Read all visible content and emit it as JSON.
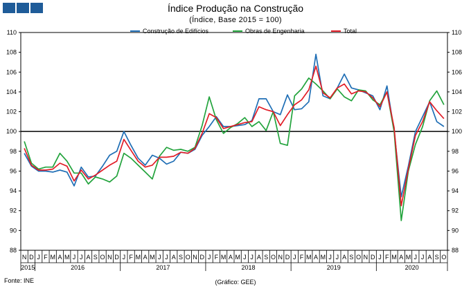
{
  "header": {
    "title": "Índice Produção na Construção",
    "subtitle": "(Índice, Base 2015 = 100)"
  },
  "footer": {
    "source": "Fonte: INE",
    "credit": "(Gráfico: GEE)"
  },
  "chart_data": {
    "type": "line",
    "ylim": [
      88,
      110
    ],
    "yticks": [
      88,
      90,
      92,
      94,
      96,
      98,
      100,
      102,
      104,
      106,
      108,
      110
    ],
    "reference_line": 100,
    "grid": false,
    "legend_position": "top",
    "x_month_labels": [
      "N",
      "D",
      "J",
      "F",
      "M",
      "A",
      "M",
      "J",
      "J",
      "A",
      "S",
      "O",
      "N",
      "D",
      "J",
      "F",
      "M",
      "A",
      "M",
      "J",
      "J",
      "A",
      "S",
      "O",
      "N",
      "D",
      "J",
      "F",
      "M",
      "A",
      "M",
      "J",
      "J",
      "A",
      "S",
      "O",
      "N",
      "D",
      "J",
      "F",
      "M",
      "A",
      "M",
      "J",
      "J",
      "A",
      "S",
      "O",
      "N",
      "D",
      "J",
      "F",
      "M",
      "A",
      "M",
      "J",
      "J",
      "A",
      "S",
      "O"
    ],
    "x_year_labels": [
      {
        "label": "2015",
        "start": 0,
        "end": 1
      },
      {
        "label": "2016",
        "start": 2,
        "end": 13
      },
      {
        "label": "2017",
        "start": 14,
        "end": 25
      },
      {
        "label": "2018",
        "start": 26,
        "end": 37
      },
      {
        "label": "2019",
        "start": 38,
        "end": 49
      },
      {
        "label": "2020",
        "start": 50,
        "end": 59
      }
    ],
    "series": [
      {
        "name": "Construção de Edifícios",
        "color": "#1f6eb5",
        "values": [
          97.8,
          96.5,
          96.0,
          96.0,
          95.9,
          96.1,
          95.9,
          94.5,
          96.4,
          95.4,
          95.5,
          96.5,
          97.6,
          98.0,
          100.0,
          98.6,
          97.3,
          96.6,
          97.6,
          97.3,
          96.7,
          97.0,
          97.9,
          97.8,
          98.2,
          99.6,
          100.5,
          101.5,
          100.5,
          100.5,
          100.6,
          100.7,
          101.1,
          103.3,
          103.3,
          102.0,
          101.7,
          103.7,
          102.2,
          102.3,
          103.0,
          107.8,
          103.6,
          103.3,
          104.4,
          105.8,
          104.4,
          104.2,
          103.9,
          103.6,
          102.2,
          104.6,
          100.1,
          93.4,
          96.5,
          100.0,
          101.5,
          103.0,
          101.0,
          100.5
        ]
      },
      {
        "name": "Obras de Engenharia",
        "color": "#22a33c",
        "values": [
          99.0,
          96.8,
          96.2,
          96.4,
          96.4,
          97.8,
          97.0,
          95.8,
          95.8,
          94.7,
          95.4,
          95.2,
          94.9,
          95.5,
          97.8,
          97.3,
          96.6,
          95.9,
          95.2,
          97.5,
          98.4,
          98.1,
          98.2,
          98.0,
          98.4,
          100.6,
          103.5,
          101.2,
          99.8,
          100.4,
          100.8,
          101.4,
          100.5,
          101.0,
          100.1,
          102.0,
          98.8,
          98.6,
          103.6,
          104.3,
          105.4,
          104.8,
          104.1,
          103.3,
          104.3,
          103.5,
          103.1,
          104.2,
          104.1,
          103.2,
          102.7,
          104.0,
          100.0,
          91.0,
          96.0,
          98.7,
          100.5,
          103.1,
          104.1,
          102.7
        ]
      },
      {
        "name": "Total",
        "color": "#e11d27",
        "values": [
          98.3,
          96.6,
          96.1,
          96.1,
          96.2,
          96.8,
          96.5,
          95.0,
          96.1,
          95.2,
          95.6,
          96.1,
          96.6,
          97.0,
          99.2,
          98.1,
          97.0,
          96.4,
          96.6,
          97.4,
          97.4,
          97.5,
          97.9,
          97.8,
          98.3,
          99.8,
          101.8,
          101.4,
          100.3,
          100.5,
          100.7,
          100.9,
          101.0,
          102.5,
          102.2,
          102.0,
          100.6,
          101.7,
          102.7,
          103.2,
          104.2,
          106.6,
          103.9,
          103.4,
          104.4,
          104.8,
          103.8,
          104.1,
          104.0,
          103.4,
          102.5,
          104.0,
          100.4,
          92.5,
          96.2,
          99.6,
          101.0,
          103.0,
          102.1,
          101.3
        ]
      }
    ]
  }
}
